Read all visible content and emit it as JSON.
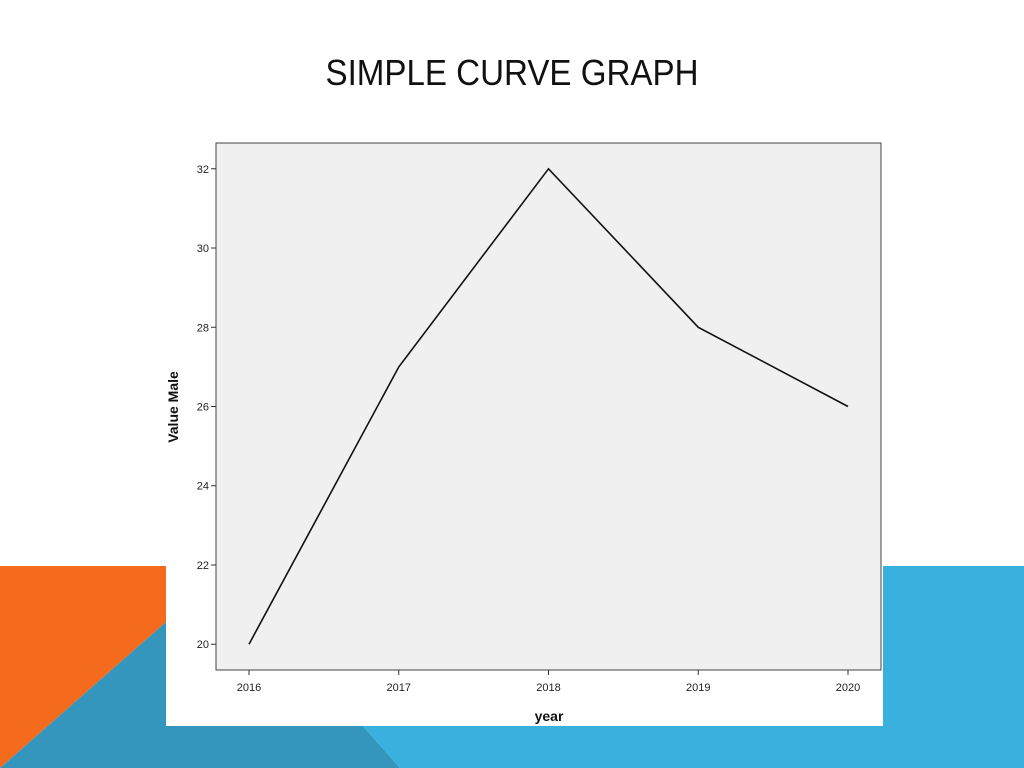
{
  "slide": {
    "title": "SIMPLE CURVE GRAPH",
    "colors": {
      "orange": "#f46b1d",
      "teal": "#3596bd",
      "blue": "#3ab0de",
      "plot_background": "#f0f0f0",
      "line": "#111111"
    }
  },
  "chart_data": {
    "type": "line",
    "title": "",
    "xlabel": "year",
    "ylabel": "Value Male",
    "x": [
      2016,
      2017,
      2018,
      2019,
      2020
    ],
    "x_tick_labels": [
      "2016",
      "2017",
      "2018",
      "2019",
      "2020"
    ],
    "series": [
      {
        "values": [
          20,
          27,
          32,
          28,
          26
        ]
      }
    ],
    "ylim": [
      19.35,
      32.65
    ],
    "y_ticks": [
      20,
      22,
      24,
      26,
      28,
      30,
      32
    ],
    "y_tick_labels": [
      "20",
      "22",
      "24",
      "26",
      "28",
      "30",
      "32"
    ],
    "grid": false,
    "legend": "none"
  }
}
